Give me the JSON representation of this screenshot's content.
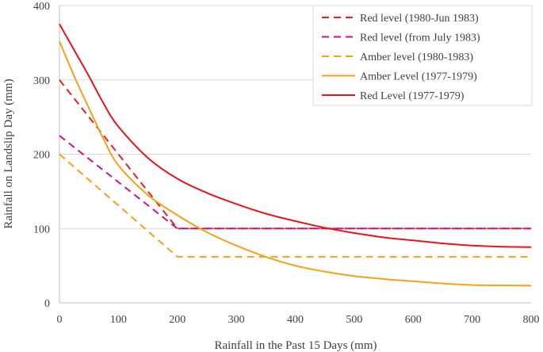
{
  "chart_data": {
    "type": "line",
    "title": "",
    "xlabel": "Rainfall in the Past 15 Days (mm)",
    "ylabel": "Rainfall on Landslip Day (mm)",
    "xlim": [
      0,
      800
    ],
    "ylim": [
      0,
      400
    ],
    "xticks": [
      0,
      100,
      200,
      300,
      400,
      500,
      600,
      700,
      800
    ],
    "yticks": [
      0,
      100,
      200,
      300,
      400
    ],
    "grid": "horizontal",
    "legend_position": "top-right",
    "series": [
      {
        "name": "Red level (1980-Jun 1983)",
        "color": "#ee1c25",
        "dash": "dashed",
        "points": [
          [
            0,
            300
          ],
          [
            200,
            100
          ],
          [
            800,
            100
          ]
        ]
      },
      {
        "name": "Red level (from July 1983)",
        "color": "#c71585",
        "dash": "dashed",
        "points": [
          [
            0,
            225
          ],
          [
            200,
            100
          ],
          [
            800,
            100
          ]
        ]
      },
      {
        "name": "Amber level (1980-1983)",
        "color": "#f5a01a",
        "dash": "dashed",
        "points": [
          [
            0,
            200
          ],
          [
            200,
            62
          ],
          [
            800,
            62
          ]
        ]
      },
      {
        "name": "Amber Level (1977-1979)",
        "color": "#f5a01a",
        "dash": "solid",
        "points": [
          [
            0,
            352
          ],
          [
            25,
            305
          ],
          [
            50,
            262
          ],
          [
            75,
            220
          ],
          [
            100,
            185
          ],
          [
            150,
            145
          ],
          [
            200,
            118
          ],
          [
            250,
            95
          ],
          [
            300,
            77
          ],
          [
            350,
            62
          ],
          [
            400,
            50
          ],
          [
            450,
            42
          ],
          [
            500,
            36
          ],
          [
            550,
            32
          ],
          [
            600,
            29
          ],
          [
            650,
            26
          ],
          [
            700,
            24
          ],
          [
            750,
            23.5
          ],
          [
            800,
            23
          ]
        ]
      },
      {
        "name": "Red Level (1977-1979)",
        "color": "#e4151f",
        "dash": "solid",
        "points": [
          [
            0,
            375
          ],
          [
            25,
            340
          ],
          [
            50,
            305
          ],
          [
            75,
            268
          ],
          [
            100,
            237
          ],
          [
            150,
            195
          ],
          [
            200,
            167
          ],
          [
            250,
            148
          ],
          [
            300,
            133
          ],
          [
            350,
            120
          ],
          [
            400,
            110
          ],
          [
            450,
            101
          ],
          [
            500,
            94
          ],
          [
            550,
            88
          ],
          [
            600,
            84
          ],
          [
            650,
            80
          ],
          [
            700,
            77
          ],
          [
            750,
            75.5
          ],
          [
            800,
            75
          ]
        ]
      }
    ]
  }
}
